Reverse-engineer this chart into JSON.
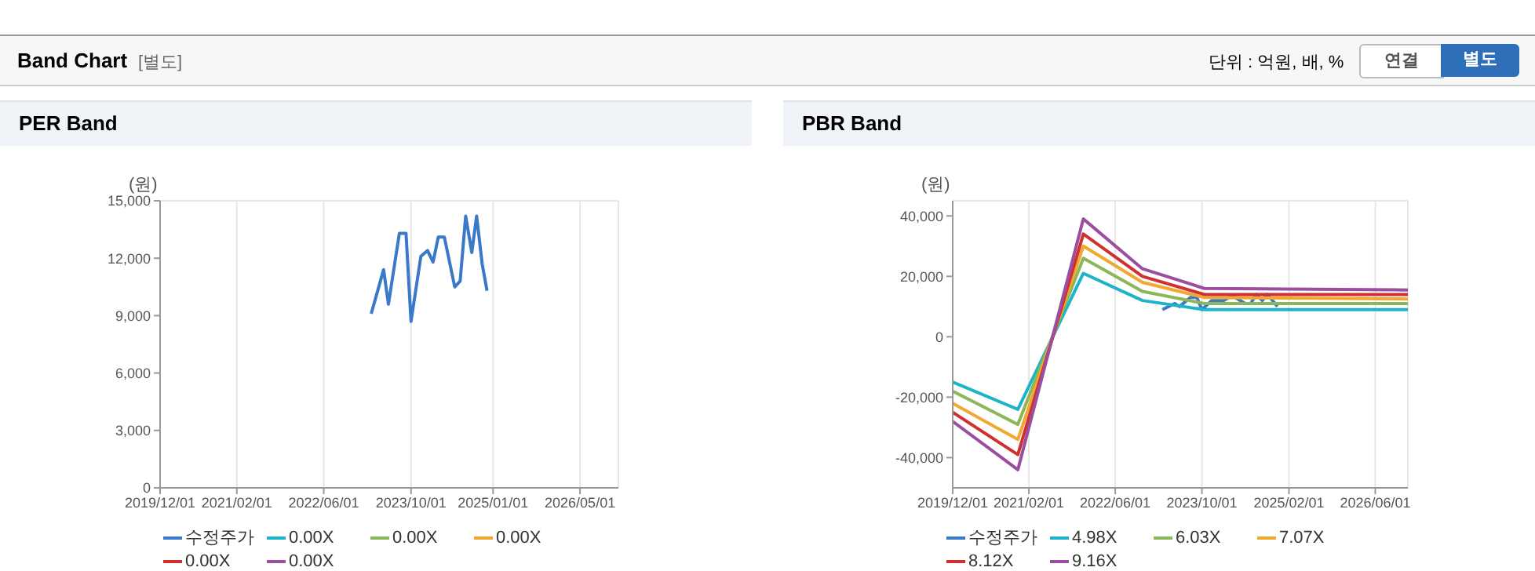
{
  "chart_data": [
    {
      "type": "line",
      "title": "PER Band",
      "ylabel": "(원)",
      "annotations": [
        "Band Chart",
        "[별도]",
        "단위 : 억원, 배, %",
        "연결",
        "별도"
      ],
      "xlim": [
        "2019-12-01",
        "2026-12-01"
      ],
      "xticks": [
        {
          "value": "2019-12-01",
          "label": "2019/12/01"
        },
        {
          "value": "2021-02-01",
          "label": "2021/02/01"
        },
        {
          "value": "2022-06-01",
          "label": "2022/06/01"
        },
        {
          "value": "2023-10-01",
          "label": "2023/10/01"
        },
        {
          "value": "2025-01-01",
          "label": "2025/01/01"
        },
        {
          "value": "2026-05-01",
          "label": "2026/05/01"
        }
      ],
      "ylim": [
        0,
        15000
      ],
      "yticks": [
        0,
        {
          "value": 3000,
          "label": "3,000"
        },
        {
          "value": 6000,
          "label": "6,000"
        },
        {
          "value": 9000,
          "label": "9,000"
        },
        {
          "value": 12000,
          "label": "12,000"
        },
        {
          "value": 15000,
          "label": "15,000"
        }
      ],
      "grid": true,
      "legend": "bottom",
      "marker": "none",
      "line_style": "solid",
      "series": [
        {
          "name": "수정주가",
          "color": "#3a78c8",
          "x": [
            "2023-02-21",
            "2023-05-01",
            "2023-05-28",
            "2023-07-28",
            "2023-09-03",
            "2023-10-01",
            "2023-11-25",
            "2024-01-01",
            "2024-02-01",
            "2024-03-01",
            "2024-04-04",
            "2024-06-01",
            "2024-07-01",
            "2024-08-01",
            "2024-09-04",
            "2024-10-01",
            "2024-11-01",
            "2024-11-28"
          ],
          "values": [
            9100,
            11400,
            9600,
            13300,
            13300,
            8700,
            12100,
            12400,
            11800,
            13100,
            13100,
            10500,
            10800,
            14200,
            12300,
            14200,
            11700,
            10300
          ]
        },
        {
          "name": "0.00X",
          "color": "#1eb4c8"
        },
        {
          "name": "0.00X",
          "color": "#8cb65a"
        },
        {
          "name": "0.00X",
          "color": "#f0a830"
        },
        {
          "name": "0.00X",
          "color": "#d03030"
        },
        {
          "name": "0.00X",
          "color": "#9b4ea0"
        }
      ]
    },
    {
      "type": "line",
      "title": "PBR Band",
      "ylabel": "(원)",
      "xlim": [
        "2019-12-01",
        "2026-12-01"
      ],
      "xticks": [
        {
          "value": "2019-12-01",
          "label": "2019/12/01"
        },
        {
          "value": "2021-02-01",
          "label": "2021/02/01"
        },
        {
          "value": "2022-06-01",
          "label": "2022/06/01"
        },
        {
          "value": "2023-10-01",
          "label": "2023/10/01"
        },
        {
          "value": "2025-02-01",
          "label": "2025/02/01"
        },
        {
          "value": "2026-06-01",
          "label": "2026/06/01"
        }
      ],
      "ylim": [
        -50000,
        45000
      ],
      "yticks": [
        {
          "value": -40000,
          "label": "-40,000"
        },
        {
          "value": -20000,
          "label": "-20,000"
        },
        0,
        {
          "value": 20000,
          "label": "20,000"
        },
        {
          "value": 40000,
          "label": "40,000"
        }
      ],
      "grid": true,
      "legend": "bottom",
      "marker": "none",
      "line_style": "solid",
      "series": [
        {
          "name": "수정주가",
          "color": "#3a78c8",
          "x": [
            "2023-02-21",
            "2023-05-01",
            "2023-05-28",
            "2023-07-28",
            "2023-09-03",
            "2023-10-01",
            "2023-11-25",
            "2024-01-01",
            "2024-02-01",
            "2024-03-01",
            "2024-04-04",
            "2024-06-01",
            "2024-07-01",
            "2024-08-01",
            "2024-09-04",
            "2024-10-01",
            "2024-11-01",
            "2024-11-28"
          ],
          "values": [
            9000,
            11000,
            10000,
            13000,
            13000,
            9000,
            12000,
            12000,
            12000,
            13000,
            13000,
            11000,
            11000,
            14000,
            12000,
            14000,
            12000,
            10000
          ]
        },
        {
          "name": "4.98X",
          "color": "#1eb4c8",
          "x": [
            "2019-12-01",
            "2020-12-01",
            "2021-12-04",
            "2022-11-01",
            "2023-10-15",
            "2026-12-01"
          ],
          "values": [
            -15000,
            -24000,
            21000,
            12000,
            9000,
            9000
          ]
        },
        {
          "name": "6.03X",
          "color": "#8cb65a",
          "x": [
            "2019-12-01",
            "2020-12-01",
            "2021-12-04",
            "2022-11-01",
            "2023-10-15",
            "2026-12-01"
          ],
          "values": [
            -18000,
            -29000,
            26000,
            15000,
            11000,
            11000
          ]
        },
        {
          "name": "7.07X",
          "color": "#f0a830",
          "x": [
            "2019-12-01",
            "2020-12-01",
            "2021-12-04",
            "2022-11-01",
            "2023-10-15",
            "2026-12-01"
          ],
          "values": [
            -22000,
            -34000,
            30000,
            18000,
            13000,
            12500
          ]
        },
        {
          "name": "8.12X",
          "color": "#d03030",
          "x": [
            "2019-12-01",
            "2020-12-01",
            "2021-12-04",
            "2022-11-01",
            "2023-10-15",
            "2026-12-01"
          ],
          "values": [
            -25000,
            -39000,
            34000,
            20000,
            14000,
            14000
          ]
        },
        {
          "name": "9.16X",
          "color": "#9b4ea0",
          "x": [
            "2019-12-01",
            "2020-12-01",
            "2021-12-04",
            "2022-11-01",
            "2023-10-15",
            "2026-12-01"
          ],
          "values": [
            -28000,
            -44000,
            39000,
            22500,
            16000,
            15500
          ]
        }
      ]
    }
  ]
}
